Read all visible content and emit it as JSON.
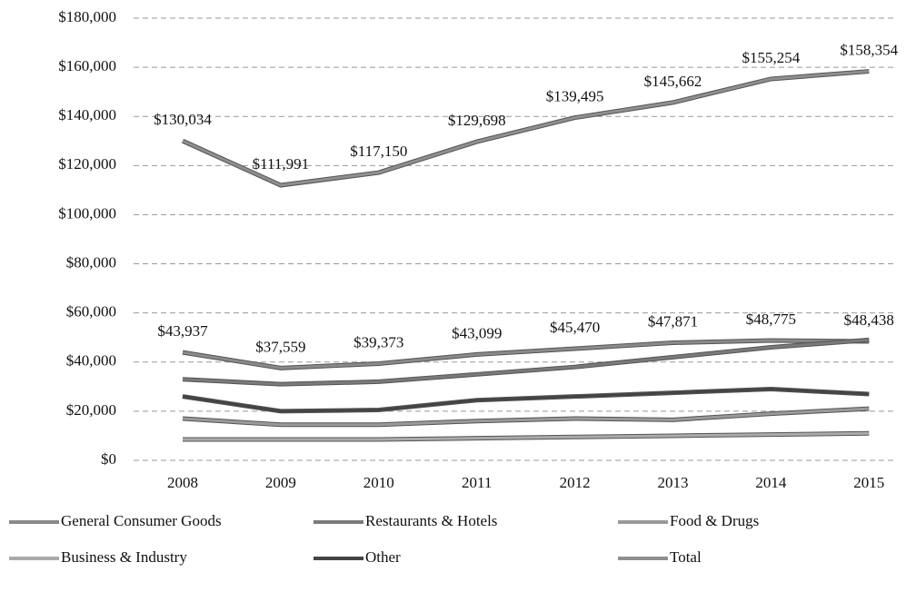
{
  "chart_data": {
    "type": "line",
    "categories": [
      "2008",
      "2009",
      "2010",
      "2011",
      "2012",
      "2013",
      "2014",
      "2015"
    ],
    "ylim": [
      0,
      180000
    ],
    "yticks": [
      {
        "value": 0,
        "label": "$0"
      },
      {
        "value": 20000,
        "label": "$20,000"
      },
      {
        "value": 40000,
        "label": "$40,000"
      },
      {
        "value": 60000,
        "label": "$60,000"
      },
      {
        "value": 80000,
        "label": "$80,000"
      },
      {
        "value": 100000,
        "label": "$100,000"
      },
      {
        "value": 120000,
        "label": "$120,000"
      },
      {
        "value": 140000,
        "label": "$140,000"
      },
      {
        "value": 160000,
        "label": "$160,000"
      },
      {
        "value": 180000,
        "label": "$180,000"
      }
    ],
    "grid": true,
    "series": [
      {
        "name": "General Consumer Goods",
        "color": "#8a8a8a",
        "values": [
          43937,
          37559,
          39373,
          43099,
          45470,
          47871,
          48775,
          48438
        ],
        "value_labels": [
          "$43,937",
          "$37,559",
          "$39,373",
          "$43,099",
          "$45,470",
          "$47,871",
          "$48,775",
          "$48,438"
        ]
      },
      {
        "name": "Restaurants & Hotels",
        "color": "#7a7a7a",
        "values": [
          33000,
          31000,
          32000,
          35000,
          38000,
          42000,
          46000,
          49000
        ]
      },
      {
        "name": "Food & Drugs",
        "color": "#9a9a9a",
        "values": [
          17000,
          14500,
          14500,
          16000,
          17000,
          16500,
          19000,
          21000
        ]
      },
      {
        "name": "Business & Industry",
        "color": "#aaaaaa",
        "values": [
          8500,
          8500,
          8500,
          9000,
          9500,
          10000,
          10500,
          11000
        ]
      },
      {
        "name": "Other",
        "color": "#444444",
        "values": [
          26000,
          20000,
          20500,
          24500,
          26000,
          27500,
          29000,
          27000
        ]
      },
      {
        "name": "Total",
        "color": "#8f8f8f",
        "values": [
          130034,
          111991,
          117150,
          129698,
          139495,
          145662,
          155254,
          158354
        ],
        "value_labels": [
          "$130,034",
          "$111,991",
          "$117,150",
          "$129,698",
          "$139,495",
          "$145,662",
          "$155,254",
          "$158,354"
        ]
      }
    ]
  }
}
